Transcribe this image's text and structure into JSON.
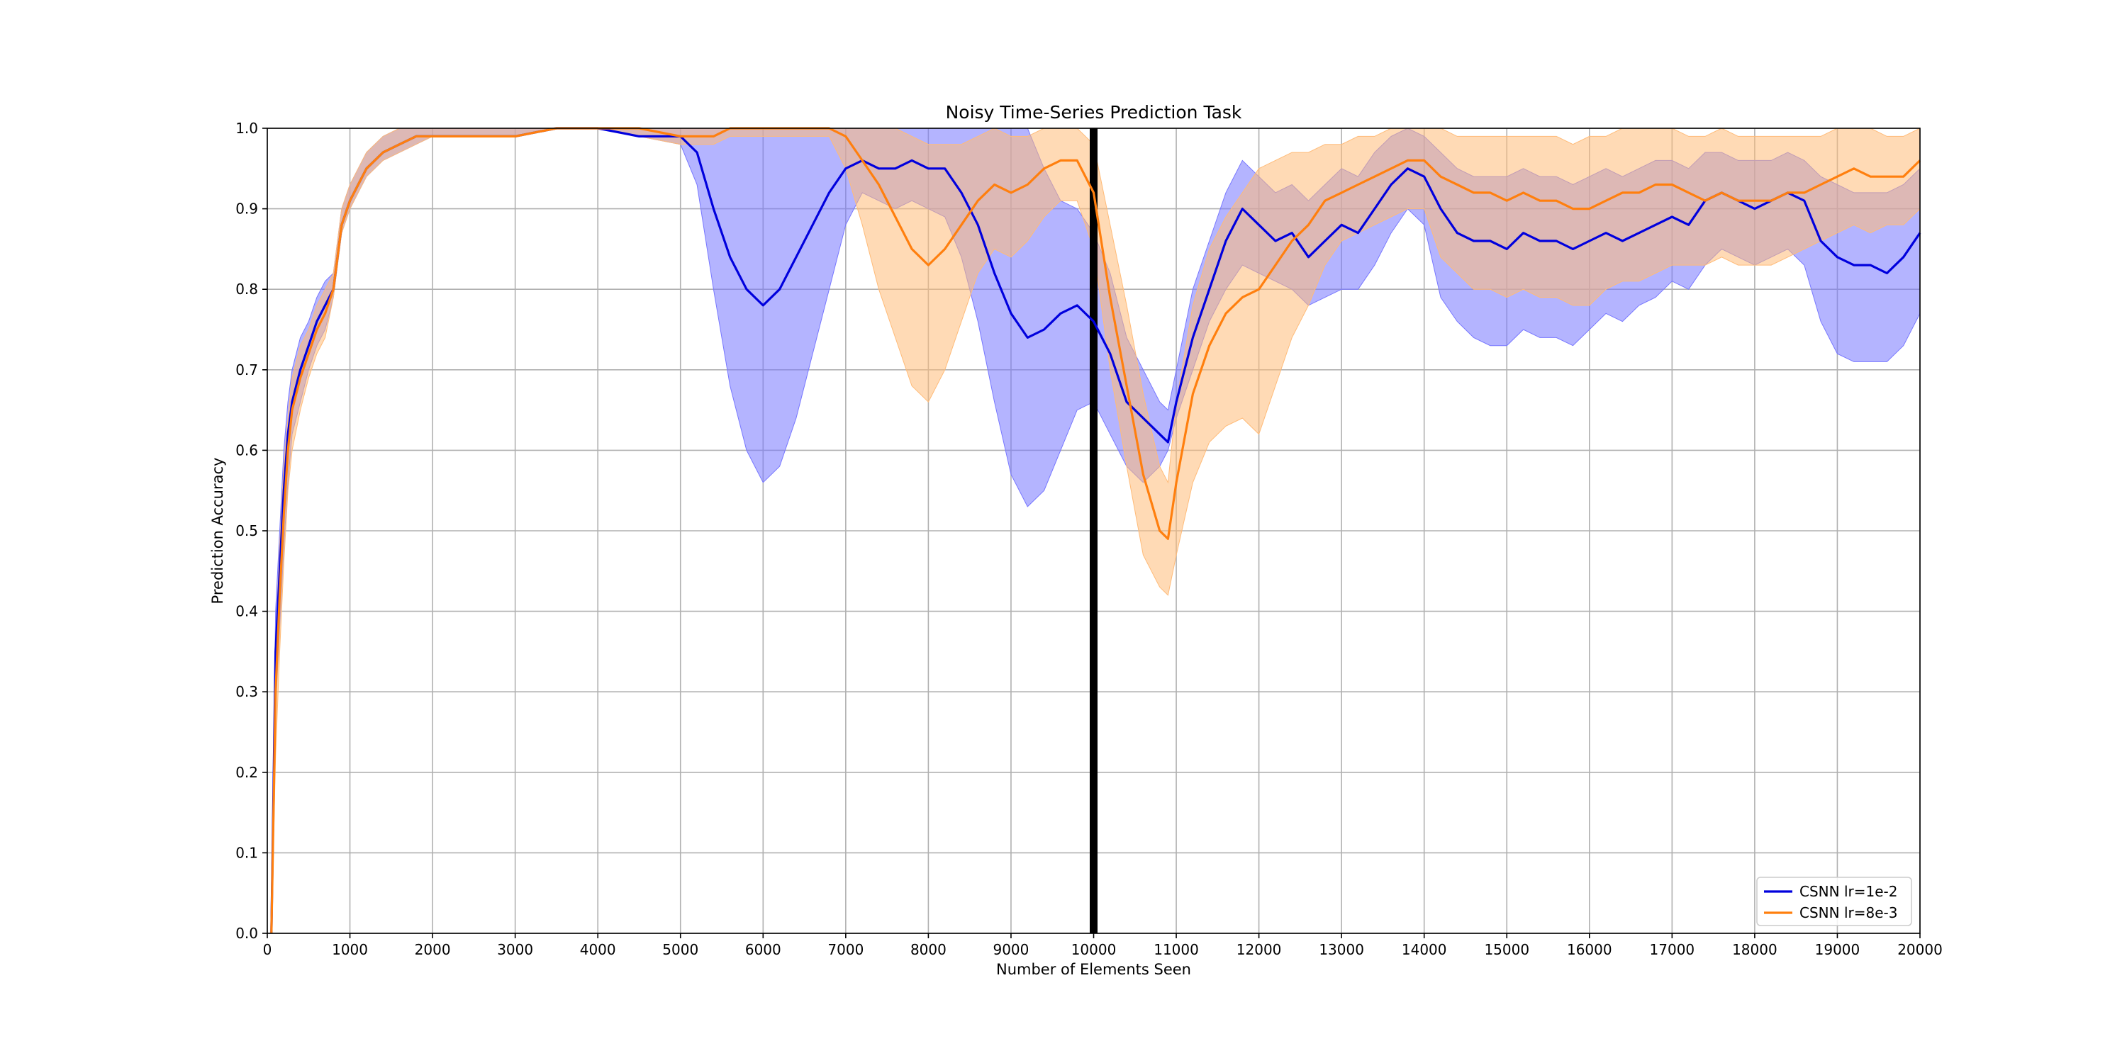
{
  "chart_data": {
    "type": "line",
    "title": "Noisy Time-Series Prediction Task",
    "xlabel": "Number of Elements Seen",
    "ylabel": "Prediction Accuracy",
    "xlim": [
      0,
      20000
    ],
    "ylim": [
      0,
      1.0
    ],
    "xticks": [
      0,
      1000,
      2000,
      3000,
      4000,
      5000,
      6000,
      7000,
      8000,
      9000,
      10000,
      11000,
      12000,
      13000,
      14000,
      15000,
      16000,
      17000,
      18000,
      19000,
      20000
    ],
    "yticks": [
      "0.0",
      "0.1",
      "0.2",
      "0.3",
      "0.4",
      "0.5",
      "0.6",
      "0.7",
      "0.8",
      "0.9",
      "1.0"
    ],
    "grid": true,
    "legend_position": "lower-right",
    "vertical_marker_x": 10000,
    "series": [
      {
        "name": "CSNN lr=1e-2",
        "color": "#0000dd",
        "band_color": "#7777ff",
        "x": [
          50,
          100,
          150,
          200,
          250,
          300,
          400,
          500,
          600,
          700,
          800,
          900,
          1000,
          1100,
          1200,
          1400,
          1600,
          1800,
          2000,
          2500,
          3000,
          3500,
          4000,
          4500,
          5000,
          5200,
          5400,
          5600,
          5800,
          6000,
          6200,
          6400,
          6600,
          6800,
          7000,
          7200,
          7400,
          7600,
          7800,
          8000,
          8200,
          8400,
          8600,
          8800,
          9000,
          9200,
          9400,
          9600,
          9800,
          10000,
          10200,
          10400,
          10600,
          10800,
          10900,
          11000,
          11200,
          11400,
          11600,
          11800,
          12000,
          12200,
          12400,
          12600,
          12800,
          13000,
          13200,
          13400,
          13600,
          13800,
          14000,
          14200,
          14400,
          14600,
          14800,
          15000,
          15200,
          15400,
          15600,
          15800,
          16000,
          16200,
          16400,
          16600,
          16800,
          17000,
          17200,
          17400,
          17600,
          17800,
          18000,
          18200,
          18400,
          18600,
          18800,
          19000,
          19200,
          19400,
          19600,
          19800,
          20000
        ],
        "y": [
          0.0,
          0.35,
          0.45,
          0.55,
          0.62,
          0.66,
          0.7,
          0.73,
          0.76,
          0.78,
          0.8,
          0.88,
          0.91,
          0.93,
          0.95,
          0.97,
          0.98,
          0.99,
          0.99,
          0.99,
          0.99,
          1.0,
          1.0,
          0.99,
          0.99,
          0.97,
          0.9,
          0.84,
          0.8,
          0.78,
          0.8,
          0.84,
          0.88,
          0.92,
          0.95,
          0.96,
          0.95,
          0.95,
          0.96,
          0.95,
          0.95,
          0.92,
          0.88,
          0.82,
          0.77,
          0.74,
          0.75,
          0.77,
          0.78,
          0.76,
          0.72,
          0.66,
          0.64,
          0.62,
          0.61,
          0.66,
          0.74,
          0.8,
          0.86,
          0.9,
          0.88,
          0.86,
          0.87,
          0.84,
          0.86,
          0.88,
          0.87,
          0.9,
          0.93,
          0.95,
          0.94,
          0.9,
          0.87,
          0.86,
          0.86,
          0.85,
          0.87,
          0.86,
          0.86,
          0.85,
          0.86,
          0.87,
          0.86,
          0.87,
          0.88,
          0.89,
          0.88,
          0.91,
          0.92,
          0.91,
          0.9,
          0.91,
          0.92,
          0.91,
          0.86,
          0.84,
          0.83,
          0.83,
          0.82,
          0.84,
          0.87
        ],
        "lower": [
          0.0,
          0.28,
          0.38,
          0.48,
          0.56,
          0.62,
          0.66,
          0.7,
          0.73,
          0.75,
          0.79,
          0.87,
          0.9,
          0.92,
          0.94,
          0.96,
          0.97,
          0.98,
          0.99,
          0.99,
          0.99,
          1.0,
          1.0,
          0.99,
          0.98,
          0.93,
          0.8,
          0.68,
          0.6,
          0.56,
          0.58,
          0.64,
          0.72,
          0.8,
          0.88,
          0.92,
          0.91,
          0.9,
          0.91,
          0.9,
          0.89,
          0.84,
          0.76,
          0.66,
          0.57,
          0.53,
          0.55,
          0.6,
          0.65,
          0.66,
          0.62,
          0.58,
          0.56,
          0.58,
          0.6,
          0.64,
          0.7,
          0.76,
          0.8,
          0.83,
          0.82,
          0.81,
          0.8,
          0.78,
          0.79,
          0.8,
          0.8,
          0.83,
          0.87,
          0.9,
          0.88,
          0.79,
          0.76,
          0.74,
          0.73,
          0.73,
          0.75,
          0.74,
          0.74,
          0.73,
          0.75,
          0.77,
          0.76,
          0.78,
          0.79,
          0.81,
          0.8,
          0.83,
          0.85,
          0.84,
          0.83,
          0.84,
          0.85,
          0.83,
          0.76,
          0.72,
          0.71,
          0.71,
          0.71,
          0.73,
          0.77
        ],
        "upper": [
          0.02,
          0.4,
          0.5,
          0.6,
          0.66,
          0.7,
          0.74,
          0.76,
          0.79,
          0.81,
          0.82,
          0.9,
          0.93,
          0.95,
          0.97,
          0.99,
          1.0,
          1.0,
          1.0,
          1.0,
          1.0,
          1.0,
          1.0,
          1.0,
          1.0,
          1.0,
          1.0,
          1.0,
          1.0,
          1.0,
          1.0,
          1.0,
          1.0,
          1.0,
          1.0,
          1.0,
          1.0,
          1.0,
          1.0,
          1.0,
          1.0,
          1.0,
          1.0,
          1.0,
          1.0,
          1.0,
          0.95,
          0.91,
          0.9,
          0.87,
          0.82,
          0.74,
          0.7,
          0.66,
          0.65,
          0.7,
          0.8,
          0.86,
          0.92,
          0.96,
          0.94,
          0.92,
          0.93,
          0.91,
          0.93,
          0.95,
          0.94,
          0.97,
          0.99,
          1.0,
          0.99,
          0.97,
          0.95,
          0.94,
          0.94,
          0.94,
          0.95,
          0.94,
          0.94,
          0.93,
          0.94,
          0.95,
          0.94,
          0.95,
          0.96,
          0.96,
          0.95,
          0.97,
          0.97,
          0.96,
          0.96,
          0.96,
          0.97,
          0.96,
          0.94,
          0.93,
          0.92,
          0.92,
          0.92,
          0.93,
          0.95
        ]
      },
      {
        "name": "CSNN lr=8e-3",
        "color": "#ff7f0e",
        "band_color": "#ffbb78",
        "x": [
          50,
          100,
          150,
          200,
          250,
          300,
          400,
          500,
          600,
          700,
          800,
          900,
          1000,
          1100,
          1200,
          1400,
          1600,
          1800,
          2000,
          2500,
          3000,
          3500,
          4000,
          4500,
          5000,
          5200,
          5400,
          5600,
          5800,
          6000,
          6200,
          6400,
          6600,
          6800,
          7000,
          7200,
          7400,
          7600,
          7800,
          8000,
          8200,
          8400,
          8600,
          8800,
          9000,
          9200,
          9400,
          9600,
          9800,
          10000,
          10200,
          10400,
          10600,
          10800,
          10900,
          11000,
          11200,
          11400,
          11600,
          11800,
          12000,
          12200,
          12400,
          12600,
          12800,
          13000,
          13200,
          13400,
          13600,
          13800,
          14000,
          14200,
          14400,
          14600,
          14800,
          15000,
          15200,
          15400,
          15600,
          15800,
          16000,
          16200,
          16400,
          16600,
          16800,
          17000,
          17200,
          17400,
          17600,
          17800,
          18000,
          18200,
          18400,
          18600,
          18800,
          19000,
          19200,
          19400,
          19600,
          19800,
          20000
        ],
        "y": [
          0.0,
          0.3,
          0.42,
          0.52,
          0.6,
          0.65,
          0.69,
          0.72,
          0.75,
          0.77,
          0.8,
          0.88,
          0.91,
          0.93,
          0.95,
          0.97,
          0.98,
          0.99,
          0.99,
          0.99,
          0.99,
          1.0,
          1.0,
          1.0,
          0.99,
          0.99,
          0.99,
          1.0,
          1.0,
          1.0,
          1.0,
          1.0,
          1.0,
          1.0,
          0.99,
          0.96,
          0.93,
          0.89,
          0.85,
          0.83,
          0.85,
          0.88,
          0.91,
          0.93,
          0.92,
          0.93,
          0.95,
          0.96,
          0.96,
          0.92,
          0.79,
          0.68,
          0.57,
          0.5,
          0.49,
          0.56,
          0.67,
          0.73,
          0.77,
          0.79,
          0.8,
          0.83,
          0.86,
          0.88,
          0.91,
          0.92,
          0.93,
          0.94,
          0.95,
          0.96,
          0.96,
          0.94,
          0.93,
          0.92,
          0.92,
          0.91,
          0.92,
          0.91,
          0.91,
          0.9,
          0.9,
          0.91,
          0.92,
          0.92,
          0.93,
          0.93,
          0.92,
          0.91,
          0.92,
          0.91,
          0.91,
          0.91,
          0.92,
          0.92,
          0.93,
          0.94,
          0.95,
          0.94,
          0.94,
          0.94,
          0.96
        ],
        "lower": [
          0.0,
          0.22,
          0.35,
          0.46,
          0.55,
          0.6,
          0.65,
          0.69,
          0.72,
          0.74,
          0.79,
          0.87,
          0.9,
          0.92,
          0.94,
          0.96,
          0.97,
          0.98,
          0.99,
          0.99,
          0.99,
          1.0,
          1.0,
          0.99,
          0.98,
          0.98,
          0.98,
          0.99,
          0.99,
          0.99,
          0.99,
          0.99,
          0.99,
          0.99,
          0.95,
          0.88,
          0.8,
          0.74,
          0.68,
          0.66,
          0.7,
          0.76,
          0.82,
          0.85,
          0.84,
          0.86,
          0.89,
          0.91,
          0.91,
          0.85,
          0.7,
          0.58,
          0.47,
          0.43,
          0.42,
          0.47,
          0.56,
          0.61,
          0.63,
          0.64,
          0.62,
          0.68,
          0.74,
          0.78,
          0.83,
          0.86,
          0.87,
          0.88,
          0.89,
          0.9,
          0.9,
          0.84,
          0.82,
          0.8,
          0.8,
          0.79,
          0.8,
          0.79,
          0.79,
          0.78,
          0.78,
          0.8,
          0.81,
          0.81,
          0.82,
          0.83,
          0.83,
          0.83,
          0.84,
          0.83,
          0.83,
          0.83,
          0.84,
          0.85,
          0.86,
          0.87,
          0.88,
          0.87,
          0.88,
          0.88,
          0.9
        ],
        "upper": [
          0.02,
          0.36,
          0.48,
          0.58,
          0.64,
          0.69,
          0.73,
          0.75,
          0.78,
          0.8,
          0.82,
          0.9,
          0.93,
          0.95,
          0.97,
          0.99,
          1.0,
          1.0,
          1.0,
          1.0,
          1.0,
          1.0,
          1.0,
          1.0,
          1.0,
          1.0,
          1.0,
          1.0,
          1.0,
          1.0,
          1.0,
          1.0,
          1.0,
          1.0,
          1.0,
          1.0,
          1.0,
          1.0,
          0.99,
          0.98,
          0.98,
          0.98,
          0.99,
          1.0,
          0.99,
          0.99,
          1.0,
          1.0,
          1.0,
          0.98,
          0.88,
          0.78,
          0.67,
          0.58,
          0.56,
          0.66,
          0.78,
          0.85,
          0.89,
          0.92,
          0.95,
          0.96,
          0.97,
          0.97,
          0.98,
          0.98,
          0.99,
          0.99,
          1.0,
          1.0,
          1.0,
          1.0,
          0.99,
          0.99,
          0.99,
          0.99,
          0.99,
          0.99,
          0.99,
          0.98,
          0.99,
          0.99,
          1.0,
          1.0,
          1.0,
          1.0,
          0.99,
          0.99,
          1.0,
          0.99,
          0.99,
          0.99,
          0.99,
          0.99,
          0.99,
          1.0,
          1.0,
          1.0,
          0.99,
          0.99,
          1.0
        ]
      }
    ]
  }
}
